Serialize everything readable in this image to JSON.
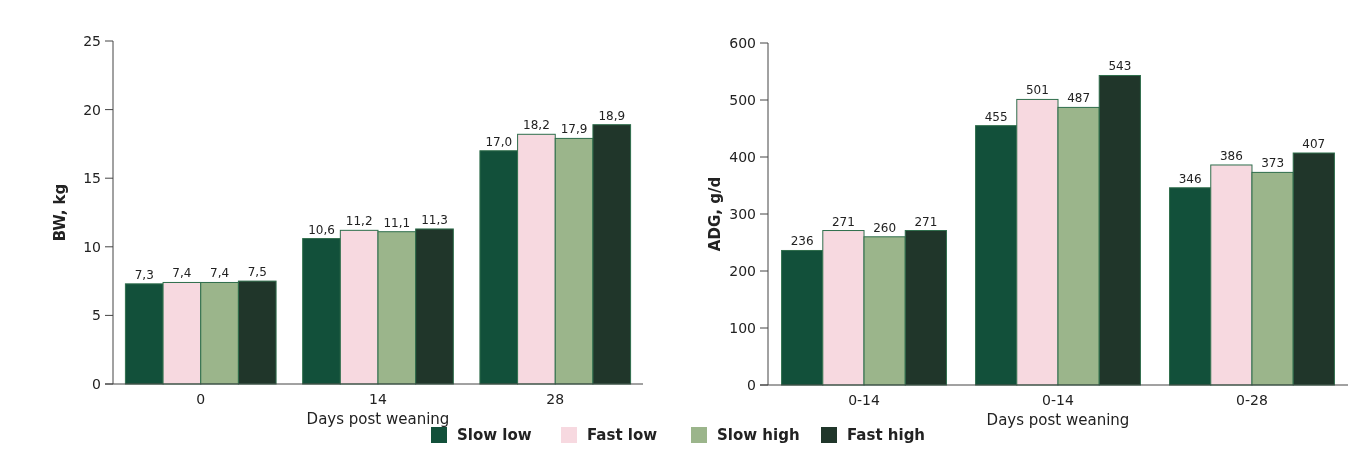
{
  "chart_data": [
    {
      "type": "bar",
      "categories": [
        "0",
        "14",
        "28"
      ],
      "xlabel": "Days post weaning",
      "ylabel": "BW, kg",
      "legend": "bottom",
      "ylim": [
        0,
        25
      ],
      "yticks": [
        0,
        5,
        10,
        15,
        20,
        25
      ],
      "series": [
        {
          "name": "Slow low",
          "color": "#12503a",
          "values": [
            7.3,
            10.6,
            17.0
          ],
          "value_labels": [
            "7,3",
            "10,6",
            "17,0"
          ]
        },
        {
          "name": "Fast low",
          "color": "#f7d9e0",
          "values": [
            7.4,
            11.2,
            18.2
          ],
          "value_labels": [
            "7,4",
            "11,2",
            "18,2"
          ]
        },
        {
          "name": "Slow high",
          "color": "#9bb58b",
          "values": [
            7.4,
            11.1,
            17.9
          ],
          "value_labels": [
            "7,4",
            "11,1",
            "17,9"
          ]
        },
        {
          "name": "Fast high",
          "color": "#20362a",
          "values": [
            7.5,
            11.3,
            18.9
          ],
          "value_labels": [
            "7,5",
            "11,3",
            "18,9"
          ]
        }
      ]
    },
    {
      "type": "bar",
      "categories": [
        "0-14",
        "0-14",
        "0-28"
      ],
      "xlabel": "Days post weaning",
      "ylabel": "ADG, g/d",
      "ylim": [
        0,
        600
      ],
      "yticks": [
        0,
        100,
        200,
        300,
        400,
        500,
        600
      ],
      "data_labels": true,
      "series": [
        {
          "color": "#12503a",
          "values": [
            236,
            455,
            346
          ]
        },
        {
          "color": "#f7d9e0",
          "values": [
            271,
            501,
            386
          ]
        },
        {
          "color": "#9bb58b",
          "values": [
            260,
            487,
            373
          ]
        },
        {
          "color": "#20362a",
          "values": [
            271,
            543,
            407
          ]
        }
      ]
    }
  ]
}
